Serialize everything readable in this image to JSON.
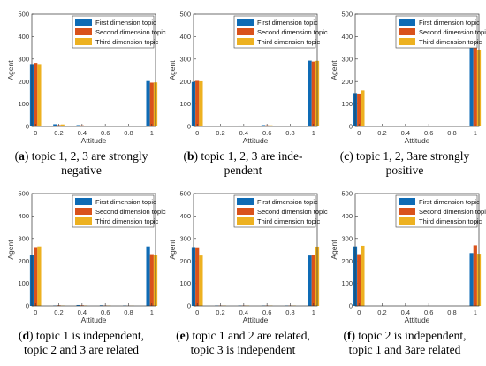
{
  "colors": {
    "first": "#0E6BB5",
    "second": "#D9521B",
    "third": "#EDB120"
  },
  "chart_data": [
    {
      "type": "bar",
      "panel_letter": "a",
      "caption_lines": [
        "topic 1, 2, 3 are strongly",
        "negative"
      ],
      "xlabel": "Attitude",
      "ylabel": "Agent",
      "ylim": [
        0,
        500
      ],
      "yticks": [
        "0",
        "100",
        "200",
        "300",
        "400",
        "500"
      ],
      "categories": [
        "0",
        "0.2",
        "0.4",
        "0.6",
        "0.8",
        "1"
      ],
      "series": [
        {
          "name": "First dimension topic",
          "values": [
            278,
            10,
            6,
            2,
            1,
            202
          ]
        },
        {
          "name": "Second dimension topic",
          "values": [
            283,
            6,
            5,
            3,
            1,
            195
          ]
        },
        {
          "name": "Third dimension topic",
          "values": [
            278,
            9,
            4,
            2,
            1,
            196
          ]
        }
      ]
    },
    {
      "type": "bar",
      "panel_letter": "b",
      "caption_lines": [
        "topic 1, 2, 3 are inde-",
        "pendent"
      ],
      "xlabel": "Attitude",
      "ylabel": "Agent",
      "ylim": [
        0,
        500
      ],
      "yticks": [
        "0",
        "100",
        "200",
        "300",
        "400",
        "500"
      ],
      "categories": [
        "0",
        "0.2",
        "0.4",
        "0.6",
        "0.8",
        "1"
      ],
      "series": [
        {
          "name": "First dimension topic",
          "values": [
            198,
            1,
            4,
            6,
            2,
            293
          ]
        },
        {
          "name": "Second dimension topic",
          "values": [
            203,
            1,
            3,
            5,
            2,
            289
          ]
        },
        {
          "name": "Third dimension topic",
          "values": [
            201,
            1,
            3,
            5,
            2,
            292
          ]
        }
      ]
    },
    {
      "type": "bar",
      "panel_letter": "c",
      "caption_lines": [
        "topic 1, 2, 3are strongly",
        "positive"
      ],
      "xlabel": "Attitude",
      "ylabel": "Agent",
      "ylim": [
        0,
        500
      ],
      "yticks": [
        "0",
        "100",
        "200",
        "300",
        "400",
        "500"
      ],
      "categories": [
        "0",
        "0.2",
        "0.4",
        "0.6",
        "0.8",
        "1"
      ],
      "series": [
        {
          "name": "First dimension topic",
          "values": [
            148,
            0,
            0,
            0,
            0,
            352
          ]
        },
        {
          "name": "Second dimension topic",
          "values": [
            146,
            0,
            0,
            0,
            0,
            354
          ]
        },
        {
          "name": "Third dimension topic",
          "values": [
            160,
            0,
            0,
            0,
            0,
            340
          ]
        }
      ]
    },
    {
      "type": "bar",
      "panel_letter": "d",
      "caption_lines": [
        "topic 1 is independent,",
        "topic 2 and 3 are related"
      ],
      "xlabel": "Attitude",
      "ylabel": "Agent",
      "ylim": [
        0,
        500
      ],
      "yticks": [
        "0",
        "100",
        "200",
        "300",
        "400",
        "500"
      ],
      "categories": [
        "0",
        "0.2",
        "0.4",
        "0.6",
        "0.8",
        "1"
      ],
      "series": [
        {
          "name": "First dimension topic",
          "values": [
            225,
            2,
            4,
            3,
            2,
            265
          ]
        },
        {
          "name": "Second dimension topic",
          "values": [
            262,
            3,
            3,
            2,
            1,
            230
          ]
        },
        {
          "name": "Third dimension topic",
          "values": [
            265,
            2,
            2,
            2,
            1,
            228
          ]
        }
      ]
    },
    {
      "type": "bar",
      "panel_letter": "e",
      "caption_lines": [
        "topic 1 and 2 are related,",
        "topic 3 is independent"
      ],
      "xlabel": "Attitude",
      "ylabel": "Agent",
      "ylim": [
        0,
        500
      ],
      "yticks": [
        "0",
        "100",
        "200",
        "300",
        "400",
        "500"
      ],
      "categories": [
        "0",
        "0.2",
        "0.4",
        "0.6",
        "0.8",
        "1"
      ],
      "series": [
        {
          "name": "First dimension topic",
          "values": [
            262,
            2,
            2,
            2,
            2,
            224
          ]
        },
        {
          "name": "Second dimension topic",
          "values": [
            261,
            2,
            2,
            2,
            2,
            226
          ]
        },
        {
          "name": "Third dimension topic",
          "values": [
            224,
            2,
            2,
            2,
            2,
            264
          ]
        }
      ]
    },
    {
      "type": "bar",
      "panel_letter": "f",
      "caption_lines": [
        "topic 2 is independent,",
        "topic 1 and 3are related"
      ],
      "xlabel": "Attitude",
      "ylabel": "Agent",
      "ylim": [
        0,
        500
      ],
      "yticks": [
        "0",
        "100",
        "200",
        "300",
        "400",
        "500"
      ],
      "categories": [
        "0",
        "0.2",
        "0.4",
        "0.6",
        "0.8",
        "1"
      ],
      "series": [
        {
          "name": "First dimension topic",
          "values": [
            265,
            0,
            0,
            0,
            0,
            235
          ]
        },
        {
          "name": "Second dimension topic",
          "values": [
            230,
            0,
            0,
            0,
            0,
            270
          ]
        },
        {
          "name": "Third dimension topic",
          "values": [
            268,
            0,
            0,
            0,
            0,
            232
          ]
        }
      ]
    }
  ]
}
